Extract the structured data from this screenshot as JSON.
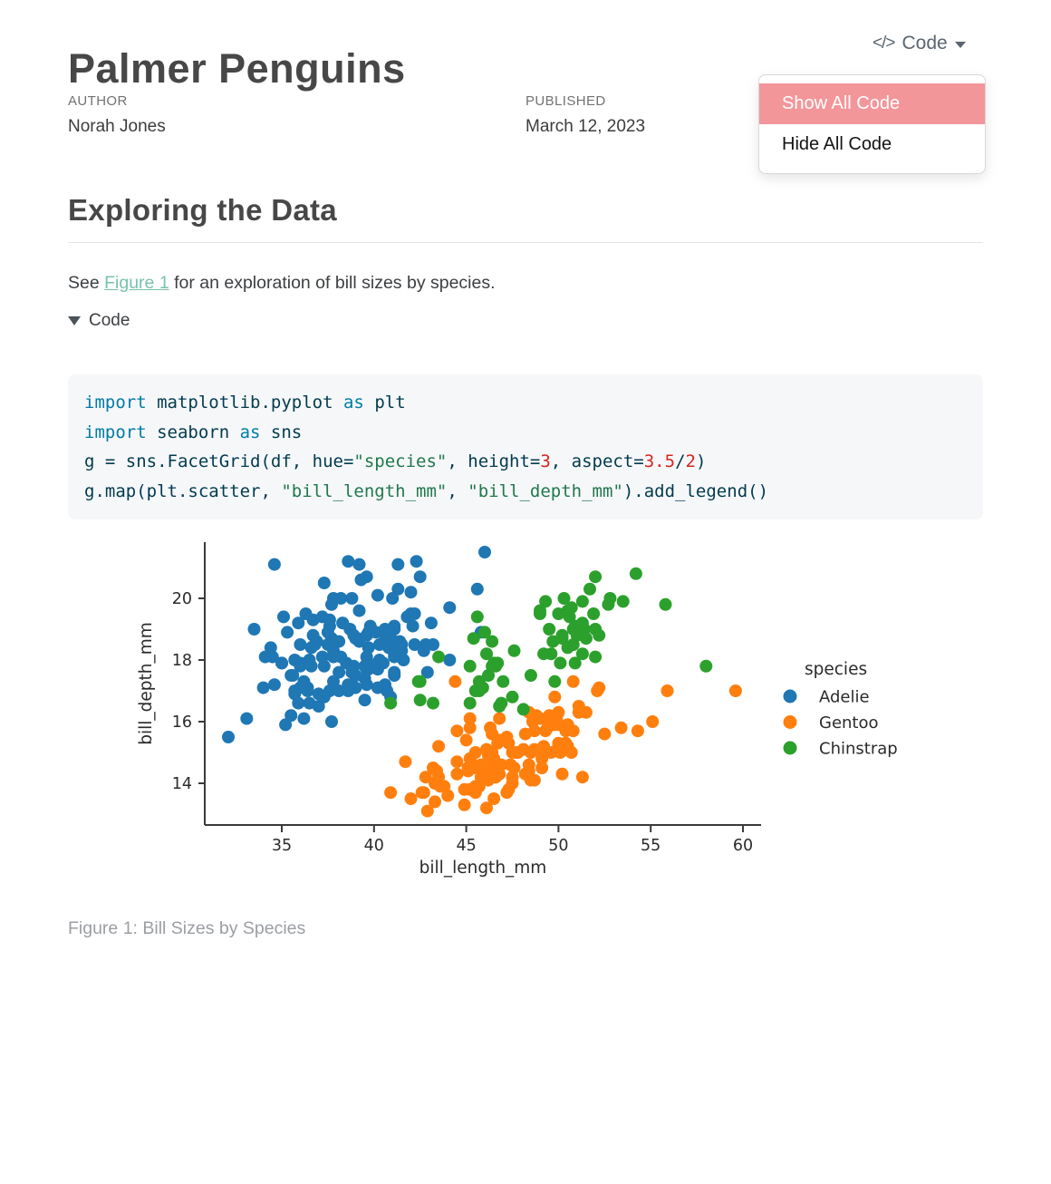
{
  "header": {
    "title": "Palmer Penguins",
    "code_menu": {
      "icon_glyph": "</>",
      "label": "Code",
      "items": [
        {
          "label": "Show All Code",
          "highlighted": true
        },
        {
          "label": "Hide All Code",
          "highlighted": false
        }
      ]
    },
    "meta": {
      "author_label": "AUTHOR",
      "author": "Norah Jones",
      "published_label": "PUBLISHED",
      "published": "March 12, 2023"
    }
  },
  "section": {
    "heading": "Exploring the Data",
    "paragraph_prefix": "See ",
    "link_text": "Figure 1",
    "paragraph_suffix": " for an exploration of bill sizes by species."
  },
  "code_fold": {
    "label": "Code"
  },
  "theme": {
    "link_color": "#78c2ad",
    "menu_highlight": "#f3969a",
    "code_keyword": "#007ba5",
    "code_string": "#20794d",
    "code_number": "#d7261d",
    "code_base": "#003b4f"
  },
  "code_block": {
    "lines": [
      [
        {
          "c": "kw",
          "t": "import"
        },
        {
          "c": "base",
          "t": " matplotlib.pyplot "
        },
        {
          "c": "kw",
          "t": "as"
        },
        {
          "c": "base",
          "t": " plt"
        }
      ],
      [
        {
          "c": "kw",
          "t": "import"
        },
        {
          "c": "base",
          "t": " seaborn "
        },
        {
          "c": "kw",
          "t": "as"
        },
        {
          "c": "base",
          "t": " sns"
        }
      ],
      [
        {
          "c": "base",
          "t": "g = sns.FacetGrid(df, hue="
        },
        {
          "c": "st",
          "t": "\"species\""
        },
        {
          "c": "base",
          "t": ", height="
        },
        {
          "c": "dv",
          "t": "3"
        },
        {
          "c": "base",
          "t": ", aspect="
        },
        {
          "c": "dv",
          "t": "3.5"
        },
        {
          "c": "base",
          "t": "/"
        },
        {
          "c": "dv",
          "t": "2"
        },
        {
          "c": "base",
          "t": ")"
        }
      ],
      [
        {
          "c": "base",
          "t": "g.map(plt.scatter, "
        },
        {
          "c": "st",
          "t": "\"bill_length_mm\""
        },
        {
          "c": "base",
          "t": ", "
        },
        {
          "c": "st",
          "t": "\"bill_depth_mm\""
        },
        {
          "c": "base",
          "t": ").add_legend()"
        }
      ]
    ]
  },
  "figure": {
    "caption": "Figure 1: Bill Sizes by Species"
  },
  "chart_data": {
    "type": "scatter",
    "xlabel": "bill_length_mm",
    "ylabel": "bill_depth_mm",
    "xticks": [
      35,
      40,
      45,
      50,
      55,
      60
    ],
    "yticks": [
      14,
      16,
      18,
      20
    ],
    "xlim": [
      30.8,
      61.1
    ],
    "ylim": [
      12.65,
      21.85
    ],
    "grid": false,
    "legend_title": "species",
    "legend_position": "right",
    "series": [
      {
        "name": "Adelie",
        "color": "#1f77b4",
        "x": [
          39.1,
          39.5,
          40.3,
          36.7,
          39.3,
          38.9,
          39.2,
          34.1,
          42.0,
          37.8,
          37.8,
          41.1,
          38.6,
          34.6,
          36.6,
          38.7,
          42.5,
          34.4,
          46.0,
          37.8,
          37.7,
          35.9,
          38.2,
          38.8,
          35.3,
          40.6,
          40.5,
          37.9,
          40.5,
          39.5,
          37.2,
          39.5,
          40.9,
          36.4,
          39.2,
          38.8,
          42.2,
          37.6,
          39.8,
          36.5,
          40.8,
          36.0,
          44.1,
          37.0,
          39.6,
          41.1,
          37.5,
          36.0,
          42.3,
          39.6,
          40.1,
          35.0,
          42.0,
          34.5,
          41.4,
          39.0,
          40.6,
          36.5,
          37.6,
          35.7,
          41.3,
          37.6,
          41.1,
          36.4,
          41.6,
          35.5,
          41.1,
          35.9,
          41.8,
          33.5,
          39.7,
          39.6,
          45.8,
          35.5,
          42.8,
          40.9,
          37.2,
          36.2,
          42.1,
          34.6,
          42.9,
          36.7,
          35.1,
          37.3,
          41.3,
          36.3,
          36.9,
          38.3,
          38.9,
          35.7,
          41.1,
          34.0,
          39.6,
          36.2,
          40.8,
          38.1,
          40.3,
          33.1,
          43.2,
          35.0,
          41.0,
          37.7,
          37.8,
          37.9,
          39.7,
          38.6,
          38.2,
          38.1,
          38.3,
          35.2,
          40.6,
          38.8,
          41.5,
          39.0,
          44.1,
          38.5,
          43.1,
          36.8,
          37.5,
          38.1,
          41.1,
          35.6,
          40.2,
          37.0,
          39.7,
          40.2,
          40.6,
          32.1,
          40.7,
          37.3,
          39.0,
          39.2,
          36.6,
          36.0,
          37.8,
          36.0,
          41.5,
          45.6,
          39.7,
          42.2,
          39.6,
          42.7,
          38.6,
          37.3,
          35.7,
          41.1,
          36.2,
          37.7,
          40.2,
          41.4,
          38.8
        ],
        "y": [
          18.7,
          17.4,
          18.0,
          19.3,
          20.6,
          17.8,
          19.6,
          18.1,
          20.2,
          17.1,
          17.3,
          17.6,
          21.2,
          21.1,
          17.8,
          19.0,
          20.7,
          18.4,
          21.5,
          18.3,
          18.7,
          19.2,
          18.1,
          17.2,
          18.9,
          18.6,
          17.9,
          18.6,
          18.9,
          16.7,
          18.1,
          17.8,
          18.9,
          17.0,
          21.1,
          20.0,
          18.5,
          19.3,
          19.1,
          18.0,
          18.4,
          18.5,
          19.7,
          16.9,
          18.8,
          19.0,
          18.9,
          17.9,
          21.2,
          17.7,
          18.9,
          17.9,
          19.5,
          18.1,
          18.6,
          17.5,
          18.8,
          16.6,
          19.1,
          16.9,
          21.1,
          17.0,
          18.2,
          17.1,
          18.0,
          16.2,
          19.1,
          16.6,
          19.4,
          19.0,
          18.4,
          17.2,
          18.9,
          17.5,
          18.5,
          16.8,
          19.4,
          16.1,
          19.1,
          17.2,
          17.6,
          18.8,
          19.4,
          17.8,
          20.3,
          19.5,
          18.6,
          19.2,
          18.8,
          18.0,
          18.1,
          17.1,
          18.1,
          17.3,
          18.9,
          18.6,
          18.5,
          16.1,
          18.5,
          17.9,
          20.0,
          16.0,
          20.0,
          18.6,
          18.9,
          17.2,
          20.0,
          17.0,
          19.2,
          15.9,
          19.0,
          17.6,
          18.3,
          17.1,
          18.0,
          17.9,
          19.2,
          18.5,
          18.5,
          17.6,
          17.5,
          17.5,
          20.1,
          16.5,
          17.9,
          17.7,
          17.2,
          15.5,
          17.0,
          16.8,
          18.7,
          18.6,
          18.4,
          17.8,
          18.1,
          17.1,
          18.5,
          20.3,
          17.7,
          19.5,
          20.7,
          18.3,
          17.0,
          20.5,
          17.0,
          18.6,
          17.2,
          19.8,
          17.1,
          18.5,
          17.6
        ]
      },
      {
        "name": "Gentoo",
        "color": "#ff7f0e",
        "x": [
          46.1,
          50.0,
          48.7,
          50.0,
          47.6,
          46.5,
          45.4,
          46.7,
          43.3,
          46.8,
          40.9,
          49.0,
          45.5,
          48.4,
          45.8,
          49.3,
          42.0,
          49.2,
          46.2,
          48.7,
          50.2,
          45.1,
          46.5,
          46.3,
          42.9,
          46.1,
          44.5,
          47.8,
          48.2,
          50.0,
          47.3,
          42.8,
          45.1,
          59.6,
          49.1,
          48.4,
          42.6,
          44.4,
          44.0,
          48.7,
          42.7,
          49.6,
          45.3,
          49.6,
          50.5,
          43.6,
          45.5,
          50.5,
          44.9,
          45.2,
          46.6,
          48.5,
          45.1,
          50.1,
          46.5,
          45.0,
          43.8,
          45.5,
          43.2,
          50.4,
          45.3,
          46.2,
          45.7,
          54.3,
          45.8,
          49.8,
          46.2,
          49.5,
          43.5,
          50.7,
          47.7,
          46.4,
          48.2,
          46.5,
          46.4,
          48.6,
          47.5,
          51.1,
          45.2,
          45.2,
          49.1,
          52.5,
          47.4,
          50.0,
          44.9,
          50.8,
          43.4,
          51.3,
          47.5,
          52.1,
          47.5,
          52.2,
          45.5,
          49.5,
          44.5,
          50.8,
          49.4,
          46.9,
          48.4,
          51.1,
          48.5,
          55.9,
          47.2,
          49.1,
          47.3,
          46.8,
          41.7,
          53.4,
          43.3,
          48.1,
          50.5,
          49.8,
          43.5,
          51.5,
          46.2,
          55.1,
          44.5,
          48.8,
          47.2,
          46.8,
          50.4,
          45.2,
          49.9
        ],
        "y": [
          13.2,
          16.3,
          14.1,
          15.2,
          14.5,
          13.5,
          14.6,
          15.3,
          13.4,
          15.4,
          13.7,
          16.1,
          13.7,
          14.6,
          14.6,
          15.7,
          13.5,
          15.2,
          14.5,
          15.1,
          14.3,
          14.5,
          14.5,
          15.8,
          13.1,
          15.1,
          14.3,
          15.0,
          14.3,
          15.3,
          15.3,
          14.2,
          14.5,
          17.0,
          14.8,
          16.3,
          13.7,
          17.3,
          13.6,
          15.7,
          13.7,
          16.0,
          13.8,
          15.0,
          15.9,
          13.9,
          13.9,
          15.9,
          13.3,
          15.8,
          14.2,
          14.1,
          14.4,
          15.0,
          14.4,
          15.4,
          13.9,
          15.0,
          14.5,
          15.3,
          13.8,
          14.9,
          13.9,
          15.7,
          14.2,
          16.8,
          14.4,
          16.2,
          14.2,
          15.0,
          15.0,
          15.6,
          15.6,
          14.8,
          15.0,
          16.0,
          14.2,
          16.3,
          13.8,
          16.1,
          14.5,
          15.6,
          14.6,
          15.9,
          13.8,
          17.3,
          14.4,
          14.2,
          14.0,
          17.0,
          15.0,
          17.1,
          14.5,
          16.1,
          14.7,
          15.7,
          15.8,
          14.6,
          14.4,
          16.5,
          15.0,
          17.0,
          15.5,
          15.0,
          13.8,
          16.1,
          14.7,
          15.8,
          14.0,
          15.1,
          15.2,
          15.9,
          15.2,
          16.3,
          14.1,
          16.0,
          15.7,
          16.2,
          13.7,
          14.3,
          15.7,
          14.8,
          16.1
        ]
      },
      {
        "name": "Chinstrap",
        "color": "#2ca02c",
        "x": [
          46.5,
          50.0,
          51.3,
          45.4,
          52.7,
          45.2,
          46.1,
          51.3,
          46.0,
          51.3,
          46.6,
          51.7,
          47.0,
          52.0,
          45.9,
          50.5,
          50.3,
          58.0,
          46.4,
          49.2,
          42.4,
          48.5,
          43.2,
          50.6,
          46.7,
          52.0,
          50.5,
          49.5,
          46.4,
          52.8,
          40.9,
          54.2,
          42.5,
          51.0,
          49.7,
          47.5,
          47.6,
          52.0,
          46.9,
          53.5,
          49.0,
          46.2,
          50.9,
          45.5,
          50.9,
          50.8,
          50.1,
          49.0,
          51.5,
          49.8,
          48.1,
          51.4,
          45.7,
          50.7,
          42.5,
          52.2,
          45.2,
          49.3,
          50.2,
          45.6,
          51.9,
          46.8,
          45.7,
          55.8,
          43.5,
          49.6,
          50.8,
          50.2
        ],
        "y": [
          17.9,
          19.5,
          19.2,
          18.7,
          19.8,
          17.8,
          18.2,
          18.2,
          18.9,
          19.9,
          17.8,
          20.3,
          17.3,
          18.1,
          17.1,
          19.6,
          20.0,
          17.8,
          18.6,
          18.2,
          17.3,
          17.5,
          16.6,
          19.4,
          17.9,
          19.0,
          18.4,
          19.0,
          17.8,
          20.0,
          16.6,
          20.8,
          16.7,
          18.8,
          18.6,
          16.8,
          18.3,
          20.7,
          16.6,
          19.9,
          19.5,
          17.5,
          19.1,
          17.0,
          17.9,
          18.5,
          17.9,
          19.6,
          18.7,
          17.3,
          16.4,
          19.0,
          17.3,
          19.7,
          17.3,
          18.8,
          16.6,
          19.9,
          18.8,
          19.4,
          19.5,
          16.5,
          17.0,
          19.8,
          18.1,
          18.2,
          19.0,
          18.7
        ]
      }
    ]
  }
}
